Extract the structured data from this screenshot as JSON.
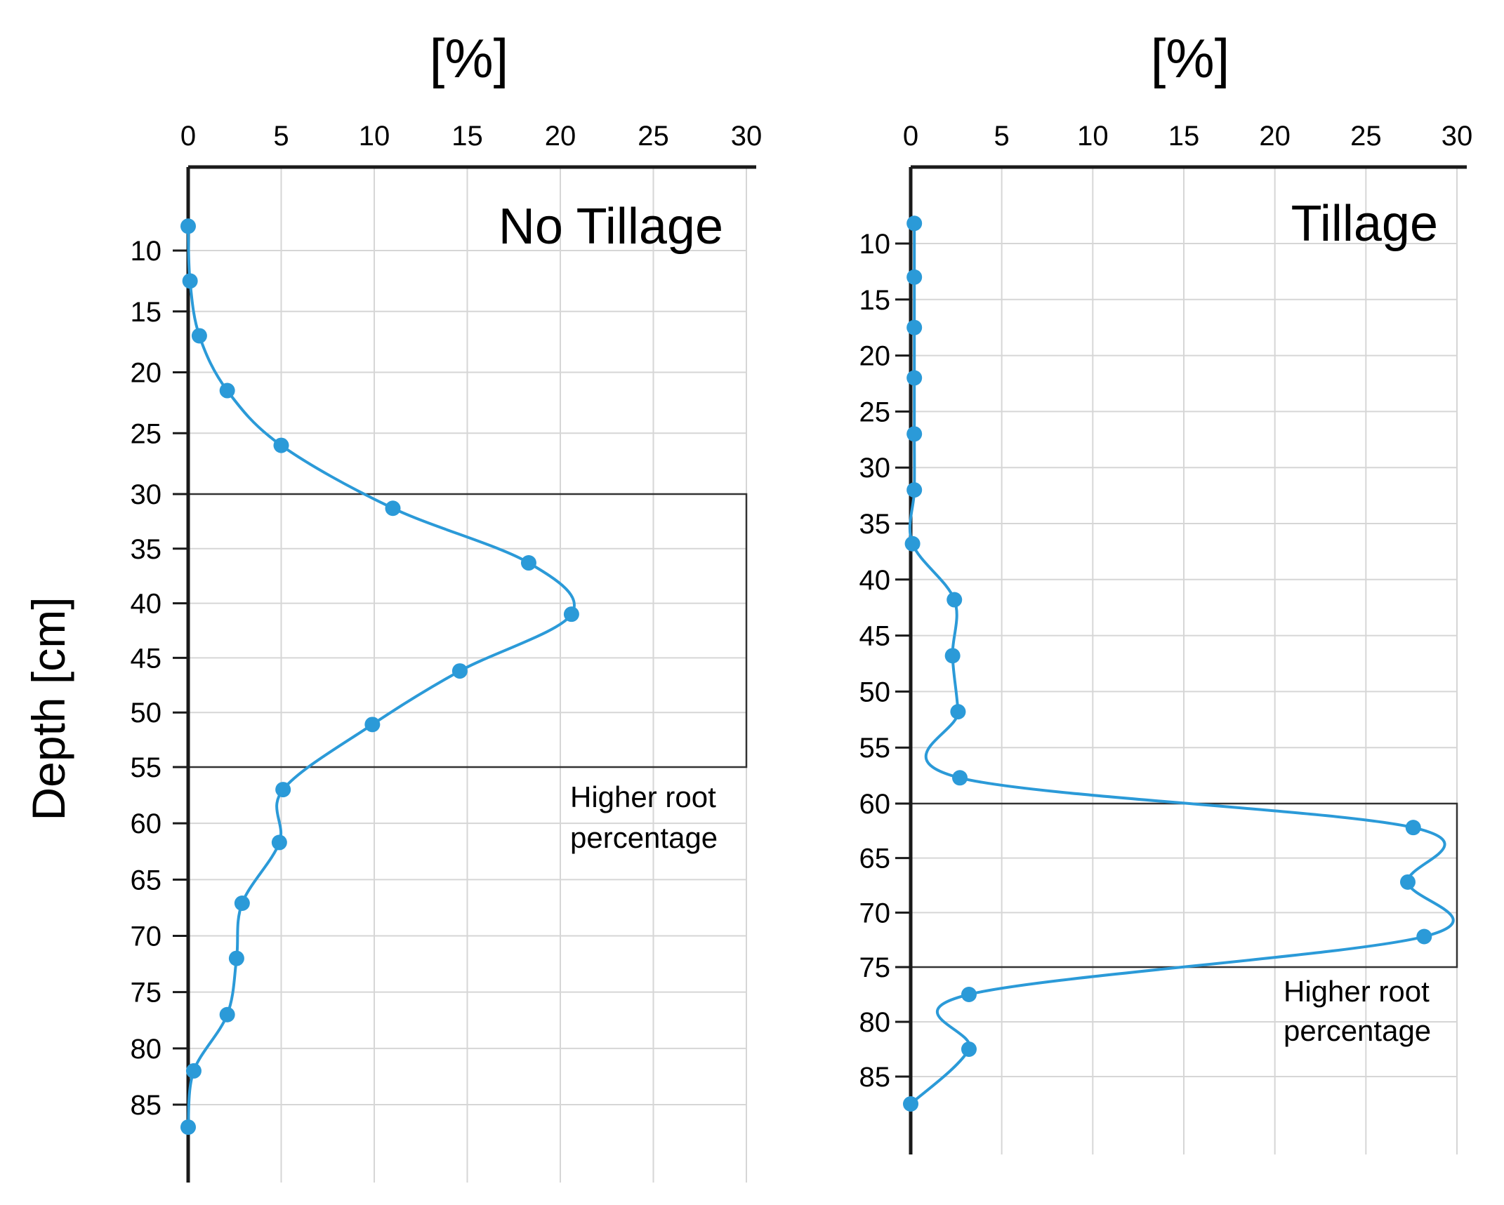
{
  "chart_data": [
    {
      "type": "line",
      "title": "No Tillage",
      "xlabel": "[%]",
      "ylabel": "Depth [cm]",
      "xlim": [
        0,
        30
      ],
      "ylim": [
        5,
        90
      ],
      "x_ticks": [
        "0",
        "5",
        "10",
        "15",
        "20",
        "25",
        "30"
      ],
      "y_ticks": [
        "10",
        "15",
        "20",
        "25",
        "30",
        "35",
        "40",
        "45",
        "50",
        "55",
        "60",
        "65",
        "70",
        "75",
        "80",
        "85"
      ],
      "series": [
        {
          "name": "No Tillage",
          "color": "#2b9ad8",
          "points": [
            {
              "x": 0,
              "y": 8
            },
            {
              "x": 0.1,
              "y": 12.5
            },
            {
              "x": 0.6,
              "y": 17
            },
            {
              "x": 2.1,
              "y": 21.5
            },
            {
              "x": 5.0,
              "y": 26
            },
            {
              "x": 11.0,
              "y": 31.3
            },
            {
              "x": 18.3,
              "y": 36.3
            },
            {
              "x": 20.6,
              "y": 41
            },
            {
              "x": 14.6,
              "y": 46.2
            },
            {
              "x": 9.9,
              "y": 51.1
            },
            {
              "x": 5.1,
              "y": 57
            },
            {
              "x": 4.9,
              "y": 61.7
            },
            {
              "x": 2.9,
              "y": 67.1
            },
            {
              "x": 2.6,
              "y": 72
            },
            {
              "x": 2.1,
              "y": 77
            },
            {
              "x": 0.3,
              "y": 82
            },
            {
              "x": 0,
              "y": 87
            }
          ]
        }
      ],
      "highlight": {
        "y_from": 30,
        "y_to": 55,
        "label_line1": "Higher root",
        "label_line2": "percentage"
      }
    },
    {
      "type": "line",
      "title": "Tillage",
      "xlabel": "[%]",
      "ylabel": "",
      "xlim": [
        0,
        30
      ],
      "ylim": [
        5,
        90
      ],
      "x_ticks": [
        "0",
        "5",
        "10",
        "15",
        "20",
        "25",
        "30"
      ],
      "y_ticks": [
        "10",
        "15",
        "20",
        "25",
        "30",
        "35",
        "40",
        "45",
        "50",
        "55",
        "60",
        "65",
        "70",
        "75",
        "80",
        "85"
      ],
      "series": [
        {
          "name": "Tillage",
          "color": "#2b9ad8",
          "points": [
            {
              "x": 0.2,
              "y": 8.2
            },
            {
              "x": 0.2,
              "y": 13
            },
            {
              "x": 0.2,
              "y": 17.5
            },
            {
              "x": 0.2,
              "y": 22
            },
            {
              "x": 0.2,
              "y": 27
            },
            {
              "x": 0.2,
              "y": 32
            },
            {
              "x": 0.1,
              "y": 36.8
            },
            {
              "x": 2.4,
              "y": 41.8
            },
            {
              "x": 2.3,
              "y": 46.8
            },
            {
              "x": 2.6,
              "y": 51.8
            },
            {
              "x": 2.7,
              "y": 57.7
            },
            {
              "x": 27.6,
              "y": 62.2
            },
            {
              "x": 27.3,
              "y": 67.2
            },
            {
              "x": 28.2,
              "y": 72.2
            },
            {
              "x": 3.2,
              "y": 77.5
            },
            {
              "x": 3.2,
              "y": 82.5
            },
            {
              "x": 0,
              "y": 87.5
            }
          ]
        }
      ],
      "highlight": {
        "y_from": 60,
        "y_to": 75,
        "label_line1": "Higher root",
        "label_line2": "percentage"
      }
    }
  ]
}
